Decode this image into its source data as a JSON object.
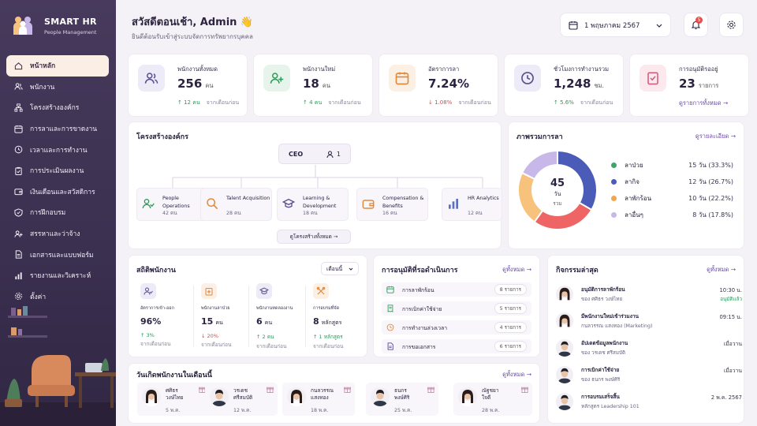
{
  "brand": {
    "name": "SMART HR",
    "subtitle": "People Management"
  },
  "nav": [
    {
      "label": "หน้าหลัก",
      "icon": "home-icon",
      "active": true
    },
    {
      "label": "พนักงาน",
      "icon": "users-icon"
    },
    {
      "label": "โครงสร้างองค์กร",
      "icon": "org-icon"
    },
    {
      "label": "การลาและการขาดงาน",
      "icon": "calendar-icon"
    },
    {
      "label": "เวลาและการทำงาน",
      "icon": "clock-icon"
    },
    {
      "label": "การประเมินผลงาน",
      "icon": "clipboard-icon"
    },
    {
      "label": "เงินเดือนและสวัสดิการ",
      "icon": "wallet-icon"
    },
    {
      "label": "การฝึกอบรม",
      "icon": "training-icon"
    },
    {
      "label": "สรรหาและว่าจ้าง",
      "icon": "recruit-icon"
    },
    {
      "label": "เอกสารและแบบฟอร์ม",
      "icon": "document-icon"
    },
    {
      "label": "รายงานและวิเคราะห์",
      "icon": "chart-icon"
    },
    {
      "label": "ตั้งค่า",
      "icon": "gear-icon"
    }
  ],
  "header": {
    "greeting": "สวัสดีตอนเช้า, Admin 👋",
    "subtitle": "ยินดีต้อนรับเข้าสู่ระบบจัดการทรัพยากรบุคคล",
    "date": "1 พฤษภาคม 2567",
    "notification_count": "5"
  },
  "stats": [
    {
      "label": "พนักงานทั้งหมด",
      "value": "256",
      "unit": "คน",
      "trend": "↑ 12 คน",
      "trend_dir": "up",
      "trend_note": "จากเดือนก่อน",
      "icon": "people-icon",
      "bg": "#ecebf7",
      "fg": "#5a4e8c"
    },
    {
      "label": "พนักงานใหม่",
      "value": "18",
      "unit": "คน",
      "trend": "↑ 4 คน",
      "trend_dir": "up",
      "trend_note": "จากเดือนก่อน",
      "icon": "user-plus-icon",
      "bg": "#e6f4ec",
      "fg": "#2c9b59"
    },
    {
      "label": "อัตราการลา",
      "value": "7.24%",
      "unit": "",
      "trend": "↓ 1.08%",
      "trend_dir": "down",
      "trend_note": "จากเดือนก่อน",
      "icon": "calendar-icon",
      "bg": "#fcefe3",
      "fg": "#e08a3c"
    },
    {
      "label": "ชั่วโมงการทำงานรวม",
      "value": "1,248",
      "unit": "ชม.",
      "trend": "↑ 5.6%",
      "trend_dir": "up",
      "trend_note": "จากเดือนก่อน",
      "icon": "clock-icon",
      "bg": "#ecebf7",
      "fg": "#5a4e8c"
    },
    {
      "label": "การอนุมัติรออยู่",
      "value": "23",
      "unit": "รายการ",
      "trend": "",
      "trend_dir": "",
      "trend_note": "",
      "link": "ดูรายการทั้งหมด →",
      "icon": "approval-icon",
      "bg": "#fbe9ee",
      "fg": "#d4577a"
    }
  ],
  "org": {
    "title": "โครงสร้างองค์กร",
    "ceo": "CEO",
    "ceo_count": "1",
    "button": "ดูโครงสร้างทั้งหมด →",
    "departments": [
      {
        "name1": "People",
        "name2": "Operations",
        "count": "42 คน",
        "icon": "people-ops-icon",
        "color": "#2c9b59"
      },
      {
        "name1": "Talent Acquisition",
        "name2": "",
        "count": "28 คน",
        "icon": "search-icon",
        "color": "#e08a3c"
      },
      {
        "name1": "Learning &",
        "name2": "Development",
        "count": "18 คน",
        "icon": "graduation-icon",
        "color": "#5a4e8c"
      },
      {
        "name1": "Compensation &",
        "name2": "Benefits",
        "count": "16 คน",
        "icon": "wallet-icon",
        "color": "#e08a3c"
      },
      {
        "name1": "HR Analytics",
        "name2": "",
        "count": "12 คน",
        "icon": "chart-icon",
        "color": "#5a6fbf"
      }
    ]
  },
  "leave": {
    "title": "ภาพรวมการลา",
    "link": "ดูรายละเอียด →",
    "total": "45",
    "total_unit": "วัน",
    "total_label": "รวม"
  },
  "chart_data": {
    "type": "pie",
    "categories": [
      "ลาป่วย",
      "ลากิจ",
      "ลาพักร้อน",
      "ลาอื่นๆ"
    ],
    "values": [
      15,
      12,
      10,
      8
    ],
    "labels": [
      "15 วัน (33.3%)",
      "12 วัน (26.7%)",
      "10 วัน (22.2%)",
      "8 วัน (17.8%)"
    ],
    "colors": [
      "#4a5cb8",
      "#ef6464",
      "#f7c27c",
      "#c8b8ea"
    ]
  },
  "legend_dot_colors": [
    "#3fa56b",
    "#4a5cb8",
    "#f2a64e",
    "#c8b8ea"
  ],
  "emp_stats": {
    "title": "สถิติพนักงาน",
    "filter": "เดือนนี้",
    "items": [
      {
        "label": "อัตราการเข้า-ออก",
        "value": "96%",
        "unit": "",
        "trend": "↑ 3%",
        "dir": "up",
        "note": "จากเดือนก่อน",
        "icon": "person-check-icon",
        "bg": "#ecebf7",
        "fg": "#5a4e8c"
      },
      {
        "label": "พนักงานลาป่วย",
        "value": "15",
        "unit": "คน",
        "trend": "↓ 20%",
        "dir": "down",
        "note": "จากเดือนก่อน",
        "icon": "medical-icon",
        "bg": "#fcefe3",
        "fg": "#e08a3c"
      },
      {
        "label": "พนักงานทดลองงาน",
        "value": "6",
        "unit": "คน",
        "trend": "↑ 2 คน",
        "dir": "up",
        "note": "จากเดือนก่อน",
        "icon": "cap-icon",
        "bg": "#ecebf7",
        "fg": "#5a4e8c"
      },
      {
        "label": "การอบรมที่จัด",
        "value": "8",
        "unit": "หลักสูตร",
        "trend": "↑ 1 หลักสูตร",
        "dir": "up",
        "note": "จากเดือนก่อน",
        "icon": "tools-icon",
        "bg": "#fcefe3",
        "fg": "#e08a3c"
      }
    ]
  },
  "approvals": {
    "title": "การอนุมัติที่รอดำเนินการ",
    "link": "ดูทั้งหมด →",
    "items": [
      {
        "label": "การลาพักร้อน",
        "count": "8 รายการ",
        "icon": "calendar-icon",
        "color": "#2c9b59"
      },
      {
        "label": "การเบิกค่าใช้จ่าย",
        "count": "5 รายการ",
        "icon": "receipt-icon",
        "color": "#2c9b59"
      },
      {
        "label": "การทำงานล่วงเวลา",
        "count": "4 รายการ",
        "icon": "clock-icon",
        "color": "#e08a3c"
      },
      {
        "label": "การขอเอกสาร",
        "count": "6 รายการ",
        "icon": "document-icon",
        "color": "#5a4e8c"
      }
    ]
  },
  "activities": {
    "title": "กิจกรรมล่าสุด",
    "link": "ดูทั้งหมด →",
    "items": [
      {
        "title": "อนุมัติการลาพักร้อน",
        "sub": "ของ ศศิธร วงษ์ไทย",
        "time": "10:30 น.",
        "tag": "อนุมัติแล้ว",
        "gender": "f"
      },
      {
        "title": "มีพนักงานใหม่เข้าร่วมงาน",
        "sub": "กนลวรรณ แสงทอง (Marketing)",
        "time": "09:15 น.",
        "tag": "",
        "gender": "f"
      },
      {
        "title": "อัปเดตข้อมูลพนักงาน",
        "sub": "ของ วรเดช ศรีสมบัติ",
        "time": "เมื่อวาน",
        "tag": "",
        "gender": "m"
      },
      {
        "title": "การเบิกค่าใช้จ่าย",
        "sub": "ของ ธนกร พงษ์ศิริ",
        "time": "เมื่อวาน",
        "tag": "",
        "gender": "m"
      },
      {
        "title": "การอบรมเสร็จสิ้น",
        "sub": "หลักสูตร Leadership 101",
        "time": "2 พ.ค. 2567",
        "tag": "",
        "gender": "m"
      }
    ]
  },
  "birthdays": {
    "title": "วันเกิดพนักงานในเดือนนี้",
    "link": "ดูทั้งหมด →",
    "items": [
      {
        "name1": "ศศิธร",
        "name2": "วงษ์ไทย",
        "date": "5 พ.ค.",
        "gender": "f"
      },
      {
        "name1": "วรเดช",
        "name2": "ศรีสมบัติ",
        "date": "12 พ.ค.",
        "gender": "m"
      },
      {
        "name1": "กนลวรรณ",
        "name2": "แสงทอง",
        "date": "18 พ.ค.",
        "gender": "f"
      },
      {
        "name1": "ธนกร",
        "name2": "พงษ์ศิริ",
        "date": "25 พ.ค.",
        "gender": "m"
      },
      {
        "name1": "ณัฐชยา",
        "name2": "ใจดี",
        "date": "28 พ.ค.",
        "gender": "f"
      }
    ]
  }
}
